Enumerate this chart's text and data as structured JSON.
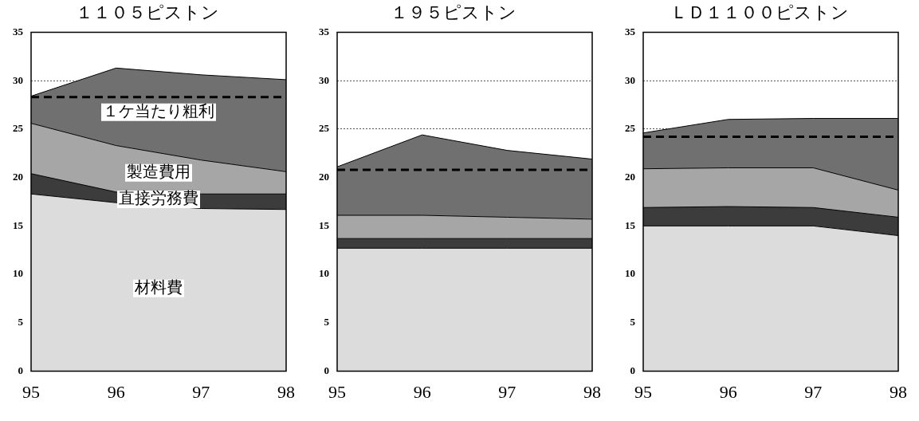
{
  "chart_data": [
    {
      "type": "area",
      "title": "１１０５ピストン",
      "stacked": true,
      "categories": [
        "95",
        "96",
        "97",
        "98"
      ],
      "ylim": [
        0,
        35
      ],
      "yticks": [
        0,
        5,
        10,
        15,
        20,
        25,
        30,
        35
      ],
      "grid": "y",
      "legend": false,
      "series": [
        {
          "name": "材料費",
          "color": "#dcdcdc",
          "values": [
            18.3,
            17.4,
            16.8,
            16.7
          ]
        },
        {
          "name": "直接労務費",
          "color": "#3c3c3c",
          "values": [
            2.1,
            1.1,
            1.5,
            1.6
          ]
        },
        {
          "name": "製造費用",
          "color": "#a6a6a6",
          "values": [
            5.2,
            4.8,
            3.5,
            2.3
          ]
        },
        {
          "name": "１ケ当たり粗利",
          "color": "#707070",
          "values": [
            2.8,
            8.0,
            8.8,
            9.5
          ]
        }
      ],
      "ref_lines": [
        {
          "axis": "y",
          "value": 28.3,
          "color": "#000000",
          "line_style": "dashed"
        }
      ]
    },
    {
      "type": "area",
      "title": "１９５ピストン",
      "stacked": true,
      "categories": [
        "95",
        "96",
        "97",
        "98"
      ],
      "ylim": [
        0,
        35
      ],
      "yticks": [
        0,
        5,
        10,
        15,
        20,
        25,
        30,
        35
      ],
      "grid": "y",
      "legend": false,
      "series": [
        {
          "color": "#dcdcdc",
          "values": [
            12.7,
            12.7,
            12.7,
            12.7
          ]
        },
        {
          "color": "#3c3c3c",
          "values": [
            1.0,
            1.0,
            1.0,
            1.0
          ]
        },
        {
          "color": "#a6a6a6",
          "values": [
            2.4,
            2.4,
            2.2,
            2.0
          ]
        },
        {
          "color": "#707070",
          "values": [
            5.0,
            8.3,
            6.9,
            6.2
          ]
        }
      ],
      "ref_lines": [
        {
          "axis": "y",
          "value": 20.8,
          "color": "#000000",
          "line_style": "dashed"
        }
      ]
    },
    {
      "type": "area",
      "title": "ＬＤ１１００ピストン",
      "stacked": true,
      "categories": [
        "95",
        "96",
        "97",
        "98"
      ],
      "ylim": [
        0,
        35
      ],
      "yticks": [
        0,
        5,
        10,
        15,
        20,
        25,
        30,
        35
      ],
      "grid": "y",
      "legend": false,
      "series": [
        {
          "color": "#dcdcdc",
          "values": [
            15.0,
            15.0,
            15.0,
            14.0
          ]
        },
        {
          "color": "#3c3c3c",
          "values": [
            1.9,
            2.0,
            1.9,
            1.9
          ]
        },
        {
          "color": "#a6a6a6",
          "values": [
            4.0,
            4.0,
            4.1,
            2.8
          ]
        },
        {
          "color": "#707070",
          "values": [
            3.7,
            5.0,
            5.1,
            7.4
          ]
        }
      ],
      "ref_lines": [
        {
          "axis": "y",
          "value": 24.2,
          "color": "#000000",
          "line_style": "dashed"
        }
      ]
    }
  ]
}
